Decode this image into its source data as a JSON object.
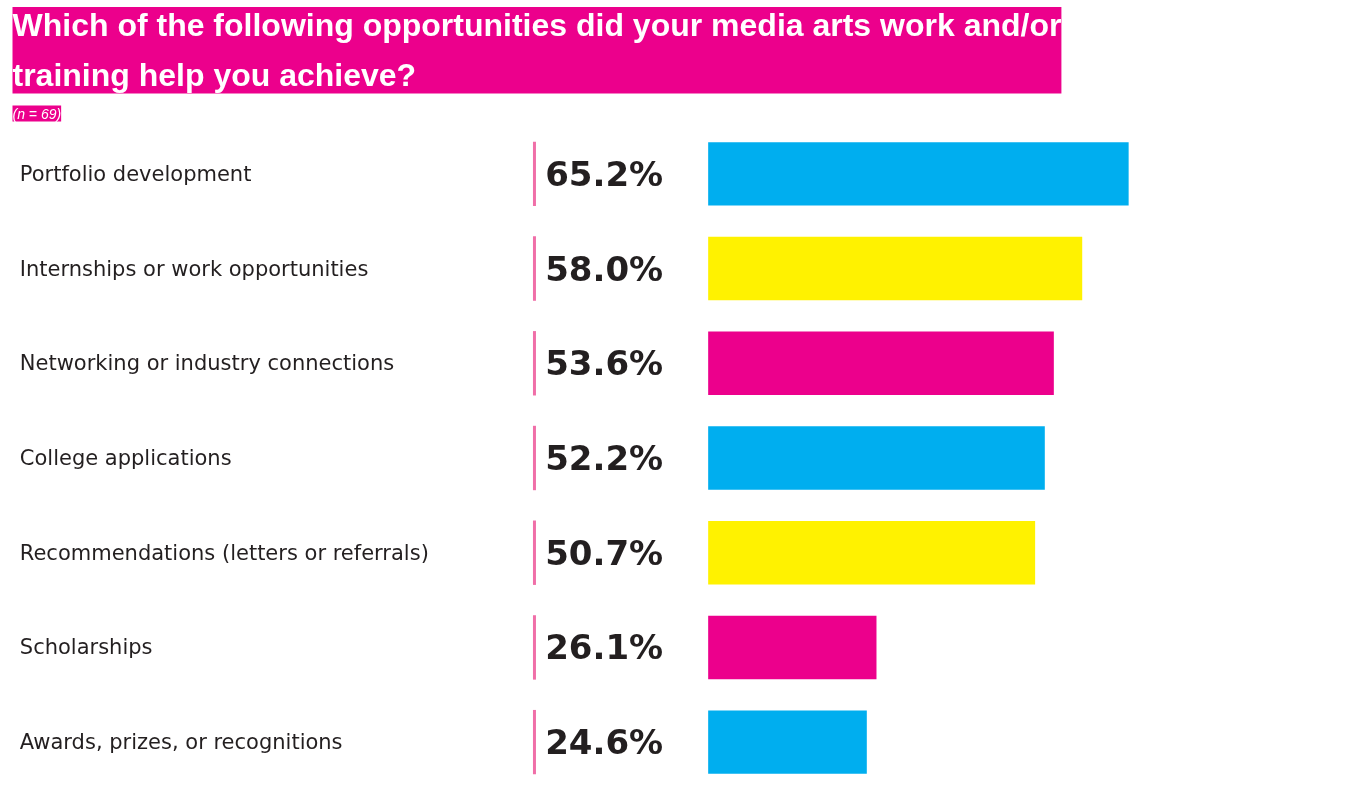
{
  "chart_data": {
    "type": "bar",
    "orientation": "horizontal",
    "title": "Which of the following opportunities did your media arts work and/or training help you achieve?",
    "subtitle": "(n = 69)",
    "categories": [
      "Portfolio development",
      "Internships or work opportunities",
      "Networking or industry connections",
      "College applications",
      "Recommendations (letters or referrals)",
      "Scholarships",
      "Awards, prizes, or recognitions"
    ],
    "values": [
      65.2,
      58.0,
      53.6,
      52.2,
      50.7,
      26.1,
      24.6
    ],
    "value_labels": [
      "65.2%",
      "58.0%",
      "53.6%",
      "52.2%",
      "50.7%",
      "26.1%",
      "24.6%"
    ],
    "colors": [
      "#00aeef",
      "#fff200",
      "#ec008c",
      "#00aeef",
      "#fff200",
      "#ec008c",
      "#00aeef"
    ],
    "grid": false
  }
}
